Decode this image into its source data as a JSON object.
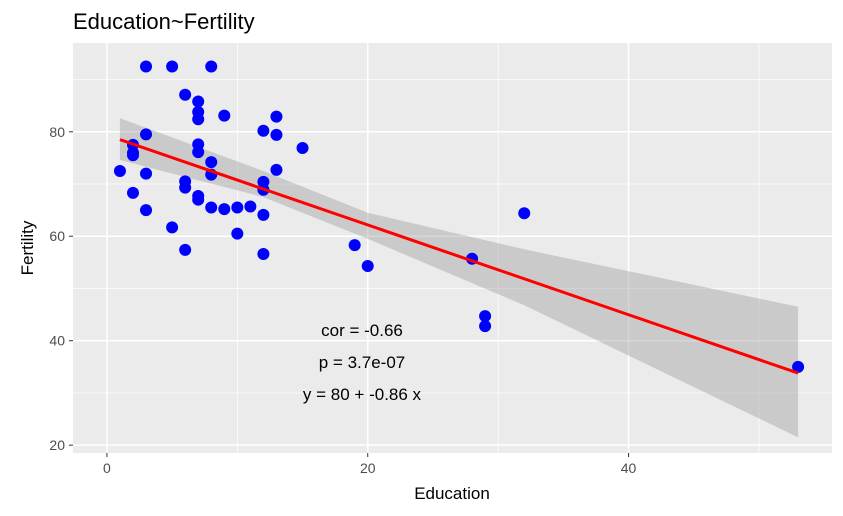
{
  "chart_data": {
    "type": "scatter",
    "title": "Education~Fertility",
    "xlabel": "Education",
    "ylabel": "Fertility",
    "xlim": [
      -2.6,
      55.6
    ],
    "ylim": [
      18.5,
      97
    ],
    "xticks": [
      0,
      20,
      40
    ],
    "yticks": [
      20,
      40,
      60,
      80
    ],
    "grid": true,
    "point_color": "#0000ff",
    "panel_color": "#ebebeb",
    "points": [
      {
        "x": 1,
        "y": 72.5
      },
      {
        "x": 2,
        "y": 77.5
      },
      {
        "x": 2,
        "y": 76
      },
      {
        "x": 2,
        "y": 75.5
      },
      {
        "x": 2,
        "y": 68.3
      },
      {
        "x": 3,
        "y": 92.5
      },
      {
        "x": 3,
        "y": 79.5
      },
      {
        "x": 3,
        "y": 72
      },
      {
        "x": 3,
        "y": 65
      },
      {
        "x": 5,
        "y": 92.5
      },
      {
        "x": 5,
        "y": 61.7
      },
      {
        "x": 6,
        "y": 87.1
      },
      {
        "x": 6,
        "y": 70.5
      },
      {
        "x": 6,
        "y": 69.3
      },
      {
        "x": 6,
        "y": 57.4
      },
      {
        "x": 7,
        "y": 85.8
      },
      {
        "x": 7,
        "y": 83.8
      },
      {
        "x": 7,
        "y": 82.4
      },
      {
        "x": 7,
        "y": 77.6
      },
      {
        "x": 7,
        "y": 76.1
      },
      {
        "x": 7,
        "y": 67.7
      },
      {
        "x": 7,
        "y": 67
      },
      {
        "x": 8,
        "y": 92.5
      },
      {
        "x": 8,
        "y": 74.2
      },
      {
        "x": 8,
        "y": 71.8
      },
      {
        "x": 8,
        "y": 65.5
      },
      {
        "x": 9,
        "y": 83.1
      },
      {
        "x": 9,
        "y": 65.2
      },
      {
        "x": 10,
        "y": 65.5
      },
      {
        "x": 10,
        "y": 60.5
      },
      {
        "x": 11,
        "y": 65.7
      },
      {
        "x": 12,
        "y": 80.2
      },
      {
        "x": 12,
        "y": 70.4
      },
      {
        "x": 12,
        "y": 68.9
      },
      {
        "x": 12,
        "y": 64.1
      },
      {
        "x": 12,
        "y": 56.6
      },
      {
        "x": 13,
        "y": 82.9
      },
      {
        "x": 13,
        "y": 79.4
      },
      {
        "x": 13,
        "y": 72.7
      },
      {
        "x": 15,
        "y": 76.9
      },
      {
        "x": 19,
        "y": 58.3
      },
      {
        "x": 20,
        "y": 54.3
      },
      {
        "x": 28,
        "y": 55.7
      },
      {
        "x": 29,
        "y": 44.7
      },
      {
        "x": 29,
        "y": 42.8
      },
      {
        "x": 32,
        "y": 64.4
      },
      {
        "x": 53,
        "y": 35
      }
    ],
    "fit": {
      "color": "#ff0000",
      "x": [
        1,
        53
      ],
      "y": [
        78.5,
        33.8
      ]
    },
    "band": {
      "lower": [
        [
          1,
          74.6
        ],
        [
          12,
          67.5
        ],
        [
          20,
          59.5
        ],
        [
          32,
          46.8
        ],
        [
          53,
          21.5
        ]
      ],
      "upper": [
        [
          1,
          82.6
        ],
        [
          12,
          72.5
        ],
        [
          20,
          64.5
        ],
        [
          32,
          57.5
        ],
        [
          53,
          46.5
        ]
      ]
    },
    "annotations": [
      "cor = -0.66",
      "p = 3.7e-07",
      "y = 80 + -0.86 x"
    ]
  }
}
